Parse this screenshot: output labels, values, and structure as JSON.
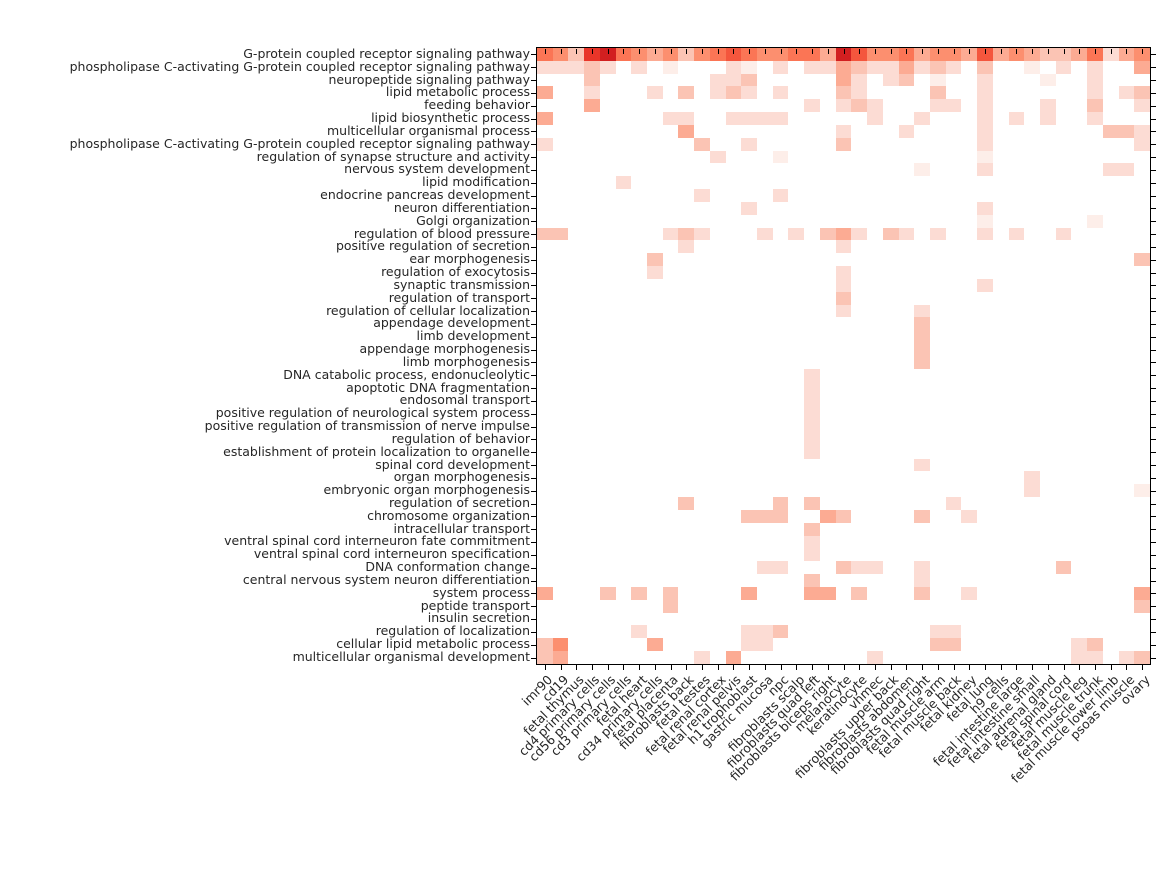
{
  "figure": {
    "background": "#ffffff",
    "axis_color": "#000000",
    "label_color": "#262626"
  },
  "chart_data": {
    "type": "heatmap",
    "title": "",
    "xlabel": "",
    "ylabel": "",
    "legend": "none",
    "colormap": "Reds",
    "value_scale": "relative enrichment intensity 0-9 (0 = white, 9 = darkest red)",
    "palette": [
      "#ffffff",
      "#fdeee9",
      "#fcdcd4",
      "#fbc4b4",
      "#fcab93",
      "#fc8f6f",
      "#fb7555",
      "#f4563d",
      "#e93529",
      "#d21f20"
    ],
    "rows": [
      "G-protein coupled receptor signaling pathway",
      "phospholipase C-activating G-protein coupled receptor signaling pathway",
      "neuropeptide signaling pathway",
      "lipid metabolic process",
      "feeding behavior",
      "lipid biosynthetic process",
      "multicellular organismal process",
      "phospholipase C-activating G-protein coupled receptor signaling pathway",
      "regulation of synapse structure and activity",
      "nervous system development",
      "lipid modification",
      "endocrine pancreas development",
      "neuron differentiation",
      "Golgi organization",
      "regulation of blood pressure",
      "positive regulation of secretion",
      "ear morphogenesis",
      "regulation of exocytosis",
      "synaptic transmission",
      "regulation of transport",
      "regulation of cellular localization",
      "appendage development",
      "limb development",
      "appendage morphogenesis",
      "limb morphogenesis",
      "DNA catabolic process, endonucleolytic",
      "apoptotic DNA fragmentation",
      "endosomal transport",
      "positive regulation of neurological system process",
      "positive regulation of transmission of nerve impulse",
      "regulation of behavior",
      "establishment of protein localization to organelle",
      "spinal cord development",
      "organ morphogenesis",
      "embryonic organ morphogenesis",
      "regulation of secretion",
      "chromosome organization",
      "intracellular transport",
      "ventral spinal cord interneuron fate commitment",
      "ventral spinal cord interneuron specification",
      "DNA conformation change",
      "central nervous system neuron differentiation",
      "system process",
      "peptide transport",
      "insulin secretion",
      "regulation of localization",
      "cellular lipid metabolic process",
      "multicellular organismal development"
    ],
    "columns": [
      "imr90",
      "cd19",
      "fetal thymus",
      "cd4 primary cells",
      "cd56 primary cells",
      "cd3 primary cells",
      "fetal heart",
      "cd34 primary cells",
      "fetal placenta",
      "fibroblasts back",
      "fetal testes",
      "fetal renal cortex",
      "fetal renal pelvis",
      "h1 trophoblast",
      "gastric mucosa",
      "npc",
      "fibroblasts scalp",
      "fibroblasts quad left",
      "fibroblasts biceps right",
      "melanocyte",
      "keratinocyte",
      "vhmec",
      "fibroblasts upper back",
      "fibroblasts abdomen",
      "fibroblasts quad right",
      "fetal muscle arm",
      "fetal muscle back",
      "fetal kidney",
      "fetal lung",
      "h9 cells",
      "fetal intestine large",
      "fetal intestine small",
      "fetal adrenal gland",
      "fetal spinal cord",
      "fetal muscle leg",
      "fetal muscle trunk",
      "fetal muscle lower limb",
      "psoas muscle",
      "ovary"
    ],
    "values": [
      "653896545356765566497556455474543346245",
      "222320201000210202243224232030010202004",
      "000300000002230000042023010020001002000",
      "400200020302320200032000030020000002023",
      "000400000000000002023200022020002003002",
      "400000002200222200000200200020202002000",
      "000000000400000000020002000020000000332",
      "200000000030020000030000000020000000002",
      "000000000002000100000000000010000000000",
      "000000000000000000000000100020000000220",
      "000002000000000000000000000000000000000",
      "000000000020000200000000000000000000000",
      "000000000000020000000000000020000000000",
      "000000000000000000000000000010000001000",
      "330000002320002020342032020020200200000",
      "000000000200000000020000000000000000000",
      "000000030000000000000000000000000000003",
      "000000020000000000020000000000000000000",
      "000000000000000000020000000020000000000",
      "000000000000000000030000000000000000000",
      "000000000000000000020000200000000000000",
      "000000000000000000000000300000000000000",
      "000000000000000000000000300000000000000",
      "000000000000000000000000300000000000000",
      "000000000000000000000000300000000000000",
      "000000000000000002000000000000000000000",
      "000000000000000002000000000000000000000",
      "000000000000000002000000000000000000000",
      "000000000000000002000000000000000000000",
      "000000000000000002000000000000000000000",
      "000000000000000002000000000000000000000",
      "000000000000000002000000000000000000000",
      "000000000000000000000000200000000000000",
      "000000000000000000000000000000020000000",
      "000000000000000000000000000000020000001",
      "000000000300000303000000002000000000000",
      "000000000000033300430000300200000000000",
      "000000000000000003000000000000000000000",
      "000000000000000002000000000000000000000",
      "000000000000000002000000000000000000000",
      "000000000000002200032200200000000300000",
      "000000000000000003000000200000000000000",
      "400030303000040004403000300200000000004",
      "000000003000000000000000000000000000003",
      "000000000000000000000000000000000000000",
      "000000200000022300000000022000000000000",
      "350000040000022000000000033000000023000",
      "340000000020400000000200000000000022023"
    ]
  }
}
